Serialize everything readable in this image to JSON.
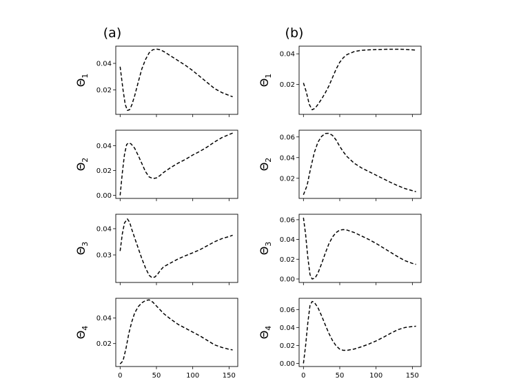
{
  "panel_labels": [
    "(a)",
    "(b)"
  ],
  "chart_data": [
    {
      "type": "line",
      "panel": "(a)",
      "row": 1,
      "ylabel_base": "Θ",
      "ylabel_sub": "1",
      "xlim": [
        -6,
        162
      ],
      "ylim": [
        0.0015,
        0.053
      ],
      "xticks": [
        0,
        50,
        100,
        150
      ],
      "xtick_labels": [
        "",
        "",
        "",
        ""
      ],
      "yticks": [
        0.02,
        0.04
      ],
      "ytick_labels": [
        "0.02",
        "0.04"
      ],
      "series": [
        {
          "style": "dashed",
          "color": "#000000",
          "x": [
            0,
            4,
            7,
            10,
            13,
            16,
            20,
            25,
            30,
            35,
            40,
            45,
            50,
            55,
            60,
            70,
            80,
            90,
            100,
            110,
            120,
            130,
            140,
            150,
            155
          ],
          "y": [
            0.0375,
            0.02,
            0.009,
            0.0045,
            0.005,
            0.0085,
            0.0155,
            0.026,
            0.036,
            0.043,
            0.048,
            0.0503,
            0.0508,
            0.0503,
            0.049,
            0.0455,
            0.042,
            0.0385,
            0.0345,
            0.03,
            0.0255,
            0.021,
            0.018,
            0.0158,
            0.0148
          ]
        }
      ]
    },
    {
      "type": "line",
      "panel": "(a)",
      "row": 2,
      "ylabel_base": "Θ",
      "ylabel_sub": "2",
      "xlim": [
        -6,
        162
      ],
      "ylim": [
        -0.0025,
        0.0525
      ],
      "xticks": [
        0,
        50,
        100,
        150
      ],
      "xtick_labels": [
        "",
        "",
        "",
        ""
      ],
      "yticks": [
        0.0,
        0.02,
        0.04
      ],
      "ytick_labels": [
        "0.00",
        "0.02",
        "0.04"
      ],
      "series": [
        {
          "style": "dashed",
          "color": "#000000",
          "x": [
            0,
            3,
            6,
            9,
            12,
            15,
            20,
            25,
            30,
            35,
            40,
            45,
            50,
            55,
            60,
            70,
            80,
            90,
            100,
            110,
            120,
            130,
            140,
            150,
            155
          ],
          "y": [
            0.0,
            0.018,
            0.033,
            0.041,
            0.0423,
            0.0415,
            0.038,
            0.032,
            0.0255,
            0.019,
            0.0148,
            0.0135,
            0.014,
            0.016,
            0.0185,
            0.0225,
            0.026,
            0.029,
            0.0325,
            0.0355,
            0.039,
            0.043,
            0.0465,
            0.049,
            0.0502
          ]
        }
      ]
    },
    {
      "type": "line",
      "panel": "(a)",
      "row": 3,
      "ylabel_base": "Θ",
      "ylabel_sub": "3",
      "xlim": [
        -6,
        162
      ],
      "ylim": [
        0.0195,
        0.0455
      ],
      "xticks": [
        0,
        50,
        100,
        150
      ],
      "xtick_labels": [
        "",
        "",
        "",
        ""
      ],
      "yticks": [
        0.03,
        0.04
      ],
      "ytick_labels": [
        "0.03",
        "0.04"
      ],
      "series": [
        {
          "style": "dashed",
          "color": "#000000",
          "x": [
            0,
            3,
            6,
            10,
            13,
            16,
            20,
            25,
            30,
            35,
            40,
            44,
            48,
            52,
            56,
            60,
            70,
            80,
            90,
            100,
            110,
            120,
            130,
            140,
            150,
            155
          ],
          "y": [
            0.0315,
            0.038,
            0.0422,
            0.0437,
            0.0425,
            0.0398,
            0.0365,
            0.0325,
            0.0285,
            0.025,
            0.0222,
            0.0213,
            0.0216,
            0.0228,
            0.0243,
            0.0255,
            0.027,
            0.0285,
            0.0297,
            0.0308,
            0.032,
            0.0335,
            0.035,
            0.0362,
            0.037,
            0.0375
          ]
        }
      ]
    },
    {
      "type": "line",
      "panel": "(a)",
      "row": 4,
      "ylabel_base": "Θ",
      "ylabel_sub": "4",
      "xlim": [
        -6,
        162
      ],
      "ylim": [
        0.002,
        0.0555
      ],
      "xticks": [
        0,
        50,
        100,
        150
      ],
      "xtick_labels": [
        "0",
        "50",
        "100",
        "150"
      ],
      "yticks": [
        0.02,
        0.04
      ],
      "ytick_labels": [
        "0.02",
        "0.04"
      ],
      "series": [
        {
          "style": "dashed",
          "color": "#000000",
          "x": [
            0,
            4,
            8,
            12,
            16,
            20,
            25,
            30,
            35,
            40,
            45,
            50,
            55,
            60,
            70,
            80,
            90,
            100,
            110,
            120,
            130,
            140,
            150,
            155
          ],
          "y": [
            0.004,
            0.0065,
            0.016,
            0.028,
            0.037,
            0.044,
            0.049,
            0.052,
            0.0538,
            0.0543,
            0.0525,
            0.0495,
            0.0465,
            0.0435,
            0.039,
            0.035,
            0.032,
            0.029,
            0.026,
            0.0225,
            0.019,
            0.017,
            0.0155,
            0.015
          ]
        }
      ]
    },
    {
      "type": "line",
      "panel": "(b)",
      "row": 1,
      "ylabel_base": "Θ",
      "ylabel_sub": "1",
      "xlim": [
        -6,
        162
      ],
      "ylim": [
        0.0005,
        0.045
      ],
      "xticks": [
        0,
        50,
        100,
        150
      ],
      "xtick_labels": [
        "",
        "",
        "",
        ""
      ],
      "yticks": [
        0.02,
        0.04
      ],
      "ytick_labels": [
        "0.02",
        "0.04"
      ],
      "series": [
        {
          "style": "dashed",
          "color": "#000000",
          "x": [
            0,
            4,
            8,
            12,
            16,
            20,
            25,
            30,
            35,
            40,
            45,
            50,
            55,
            60,
            70,
            80,
            90,
            100,
            110,
            120,
            130,
            140,
            150,
            155
          ],
          "y": [
            0.021,
            0.015,
            0.007,
            0.0035,
            0.0045,
            0.007,
            0.0105,
            0.0145,
            0.019,
            0.0245,
            0.03,
            0.0345,
            0.0375,
            0.0395,
            0.0415,
            0.0423,
            0.0426,
            0.0428,
            0.0429,
            0.043,
            0.043,
            0.0429,
            0.0426,
            0.0424
          ]
        }
      ]
    },
    {
      "type": "line",
      "panel": "(b)",
      "row": 2,
      "ylabel_base": "Θ",
      "ylabel_sub": "2",
      "xlim": [
        -6,
        162
      ],
      "ylim": [
        0.0005,
        0.0665
      ],
      "xticks": [
        0,
        50,
        100,
        150
      ],
      "xtick_labels": [
        "",
        "",
        "",
        ""
      ],
      "yticks": [
        0.02,
        0.04,
        0.06
      ],
      "ytick_labels": [
        "0.02",
        "0.04",
        "0.06"
      ],
      "series": [
        {
          "style": "dashed",
          "color": "#000000",
          "x": [
            0,
            5,
            10,
            15,
            20,
            25,
            30,
            35,
            40,
            45,
            50,
            55,
            60,
            70,
            80,
            90,
            100,
            110,
            120,
            130,
            140,
            150,
            155
          ],
          "y": [
            0.004,
            0.013,
            0.03,
            0.045,
            0.055,
            0.0605,
            0.0633,
            0.0635,
            0.0615,
            0.057,
            0.0508,
            0.0455,
            0.041,
            0.0345,
            0.03,
            0.0265,
            0.023,
            0.0195,
            0.016,
            0.0128,
            0.01,
            0.008,
            0.007
          ]
        }
      ]
    },
    {
      "type": "line",
      "panel": "(b)",
      "row": 3,
      "ylabel_base": "Θ",
      "ylabel_sub": "3",
      "xlim": [
        -6,
        162
      ],
      "ylim": [
        -0.0035,
        0.0655
      ],
      "xticks": [
        0,
        50,
        100,
        150
      ],
      "xtick_labels": [
        "",
        "",
        "",
        ""
      ],
      "yticks": [
        0.0,
        0.02,
        0.04,
        0.06
      ],
      "ytick_labels": [
        "0.00",
        "0.02",
        "0.04",
        "0.06"
      ],
      "series": [
        {
          "style": "dashed",
          "color": "#000000",
          "x": [
            0,
            3,
            6,
            9,
            12,
            16,
            20,
            25,
            30,
            35,
            40,
            45,
            50,
            55,
            60,
            70,
            80,
            90,
            100,
            110,
            120,
            130,
            140,
            150,
            155
          ],
          "y": [
            0.062,
            0.045,
            0.022,
            0.0045,
            0.0,
            0.001,
            0.006,
            0.0155,
            0.026,
            0.0355,
            0.0425,
            0.047,
            0.0495,
            0.05,
            0.0495,
            0.047,
            0.0435,
            0.04,
            0.036,
            0.0315,
            0.027,
            0.0225,
            0.0185,
            0.0158,
            0.0148
          ]
        }
      ]
    },
    {
      "type": "line",
      "panel": "(b)",
      "row": 4,
      "ylabel_base": "Θ",
      "ylabel_sub": "4",
      "xlim": [
        -6,
        162
      ],
      "ylim": [
        -0.0035,
        0.0725
      ],
      "xticks": [
        0,
        50,
        100,
        150
      ],
      "xtick_labels": [
        "0",
        "50",
        "100",
        "150"
      ],
      "yticks": [
        0.0,
        0.02,
        0.04,
        0.06
      ],
      "ytick_labels": [
        "0.00",
        "0.02",
        "0.04",
        "0.06"
      ],
      "series": [
        {
          "style": "dashed",
          "color": "#000000",
          "x": [
            0,
            3,
            6,
            9,
            12,
            15,
            20,
            25,
            30,
            35,
            40,
            45,
            50,
            55,
            60,
            70,
            80,
            90,
            100,
            110,
            120,
            130,
            140,
            150,
            155
          ],
          "y": [
            0.0,
            0.02,
            0.045,
            0.0645,
            0.069,
            0.068,
            0.062,
            0.053,
            0.043,
            0.0335,
            0.0255,
            0.0195,
            0.0158,
            0.0145,
            0.0145,
            0.016,
            0.0185,
            0.0215,
            0.025,
            0.029,
            0.0335,
            0.0375,
            0.04,
            0.041,
            0.0414
          ]
        }
      ]
    }
  ]
}
